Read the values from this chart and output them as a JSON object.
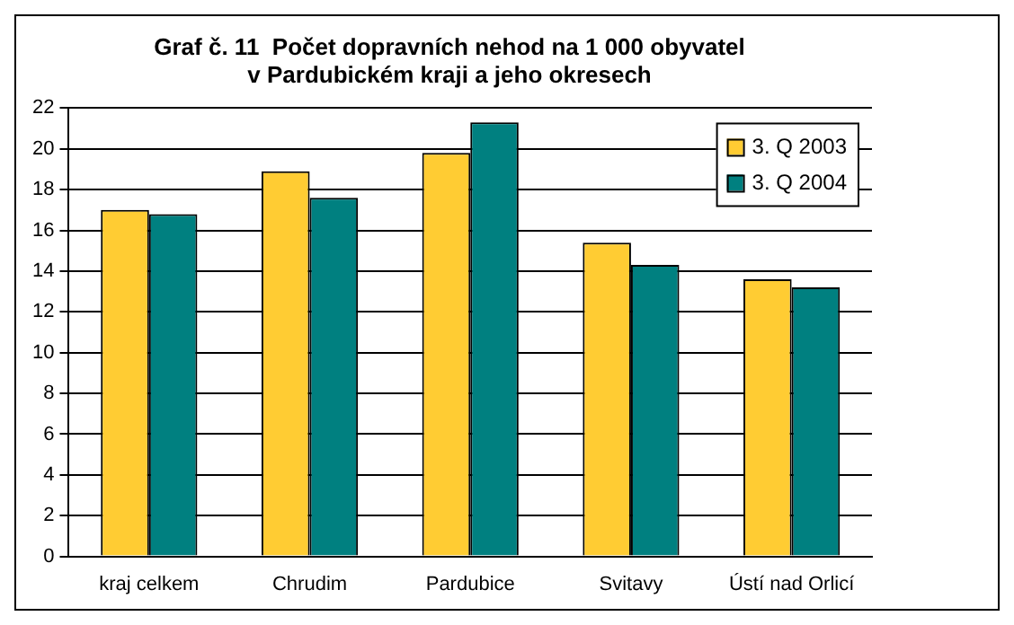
{
  "chart_data": {
    "type": "bar",
    "title": "Graf č. 11  Počet dopravních nehod na 1 000 obyvatel\nv Pardubickém kraji a jeho okresech",
    "categories": [
      "kraj celkem",
      "Chrudim",
      "Pardubice",
      "Svitavy",
      "Ústí nad Orlicí"
    ],
    "series": [
      {
        "name": "3. Q 2003",
        "color": "#ffcc33",
        "values": [
          17.0,
          18.9,
          19.8,
          15.4,
          13.6
        ]
      },
      {
        "name": "3. Q 2004",
        "color": "#008080",
        "values": [
          16.8,
          17.6,
          21.3,
          14.3,
          13.2
        ]
      }
    ],
    "ylim": [
      0,
      22
    ],
    "yticks": [
      0,
      2,
      4,
      6,
      8,
      10,
      12,
      14,
      16,
      18,
      20,
      22
    ],
    "grid": "y",
    "legend": "top right"
  }
}
